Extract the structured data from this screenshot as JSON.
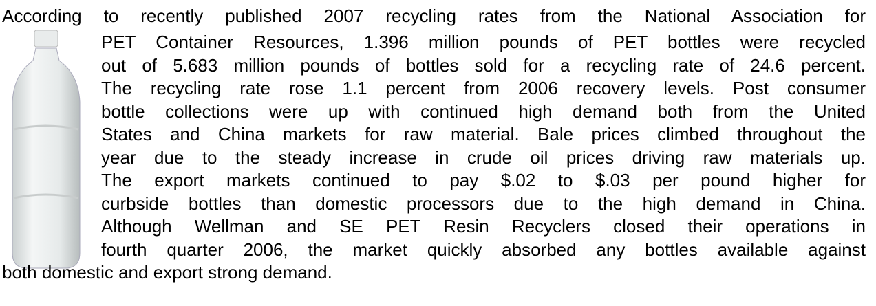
{
  "paragraph": {
    "lines": [
      "According to recently published 2007 recycling rates from the National Association for",
      "PET Container Resources, 1.396 million pounds of PET bottles were recycled",
      "out of 5.683 million pounds of bottles sold for a recycling rate of 24.6 percent.",
      "The recycling rate rose 1.1 percent from 2006 recovery levels. Post consumer",
      "bottle collections were up with continued high demand both from the United",
      "States and China markets for raw material. Bale prices climbed throughout the",
      "year due to the steady increase in crude oil prices driving raw materials up.",
      "The export markets continued to pay $.02 to $.03 per pound higher for",
      "curbside bottles than domestic processors due to the high demand in China.",
      "Although Wellman and SE PET Resin Recyclers closed their operations in",
      "fourth quarter 2006, the market quickly absorbed any bottles available against",
      "both domestic and export strong demand."
    ]
  }
}
